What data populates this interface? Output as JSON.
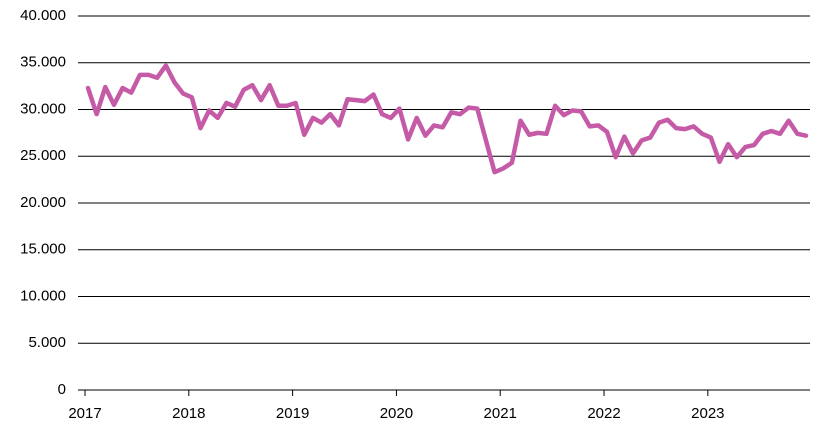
{
  "chart_data": {
    "type": "line",
    "categories": [
      "2017",
      null,
      null,
      null,
      null,
      null,
      null,
      null,
      null,
      null,
      null,
      null,
      "2018",
      null,
      null,
      null,
      null,
      null,
      null,
      null,
      null,
      null,
      null,
      null,
      "2019",
      null,
      null,
      null,
      null,
      null,
      null,
      null,
      null,
      null,
      null,
      null,
      "2020",
      null,
      null,
      null,
      null,
      null,
      null,
      null,
      null,
      null,
      null,
      null,
      "2021",
      null,
      null,
      null,
      null,
      null,
      null,
      null,
      null,
      null,
      null,
      null,
      "2022",
      null,
      null,
      null,
      null,
      null,
      null,
      null,
      null,
      null,
      null,
      null,
      "2023",
      null,
      null,
      null,
      null,
      null,
      null,
      null,
      null,
      null,
      null,
      null
    ],
    "series": [
      {
        "color": "#c55aa6",
        "values": [
          32300,
          29500,
          32400,
          30500,
          32300,
          31800,
          33700,
          33700,
          33400,
          34700,
          32900,
          31700,
          31300,
          28000,
          29900,
          29100,
          30700,
          30300,
          32100,
          32600,
          31000,
          32600,
          30400,
          30400,
          30700,
          27300,
          29100,
          28600,
          29500,
          28300,
          31100,
          31000,
          30900,
          31600,
          29500,
          29100,
          30100,
          26800,
          29100,
          27200,
          28300,
          28100,
          29700,
          29500,
          30200,
          30100,
          26700,
          23300,
          23700,
          24300,
          28800,
          27300,
          27500,
          27400,
          30400,
          29400,
          29900,
          29800,
          28200,
          28300,
          27600,
          24900,
          27100,
          25300,
          26700,
          27000,
          28600,
          28900,
          28000,
          27900,
          28200,
          27400,
          27000,
          24400,
          26300,
          24900,
          26000,
          26200,
          27400,
          27700,
          27400,
          28800,
          27400,
          27200
        ]
      }
    ],
    "ylim": [
      0,
      40000
    ],
    "yticks": [
      0,
      {
        "value": 5000,
        "label": "5.000"
      },
      {
        "value": 10000,
        "label": "10.000"
      },
      {
        "value": 15000,
        "label": "15.000"
      },
      {
        "value": 20000,
        "label": "20.000"
      },
      {
        "value": 25000,
        "label": "25.000"
      },
      {
        "value": 30000,
        "label": "30.000"
      },
      {
        "value": 35000,
        "label": "35.000"
      },
      {
        "value": 40000,
        "label": "40.000"
      }
    ],
    "grid": true
  }
}
